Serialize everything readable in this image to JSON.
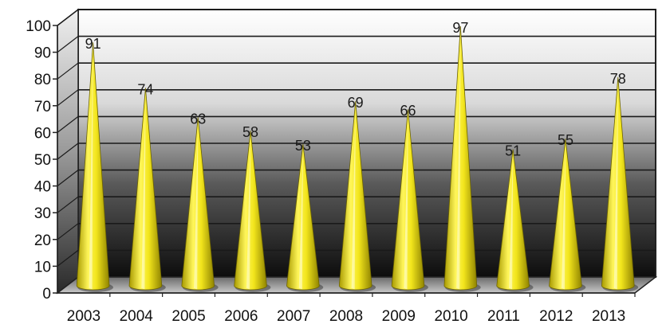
{
  "chart_data": {
    "type": "bar",
    "title": "",
    "xlabel": "",
    "ylabel": "",
    "ylim": [
      0,
      100
    ],
    "yticks": [
      0,
      10,
      20,
      30,
      40,
      50,
      60,
      70,
      80,
      90,
      100
    ],
    "grid": true,
    "bar_shape": "cone",
    "bar_color": "#f2e51c",
    "categories": [
      "2003",
      "2004",
      "2005",
      "2006",
      "2007",
      "2008",
      "2009",
      "2010",
      "2011",
      "2012",
      "2013"
    ],
    "values": [
      91,
      74,
      63,
      58,
      53,
      69,
      66,
      97,
      51,
      55,
      78
    ],
    "data_labels": [
      "91",
      "74",
      "63",
      "58",
      "53",
      "69",
      "66",
      "97",
      "51",
      "55",
      "78"
    ]
  }
}
